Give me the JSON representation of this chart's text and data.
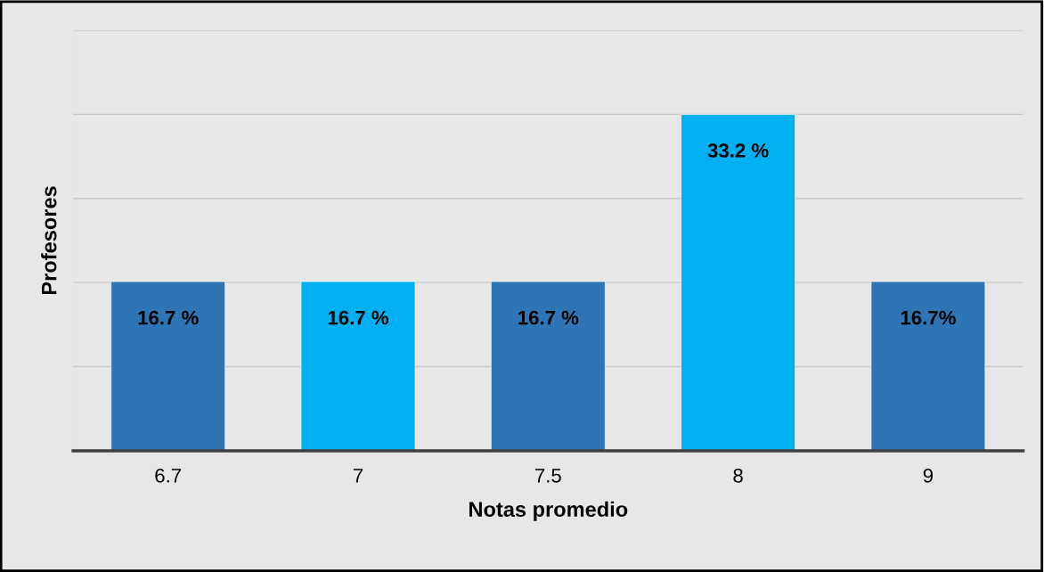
{
  "chart_data": {
    "type": "bar",
    "xlabel": "Notas promedio",
    "ylabel": "Profesores",
    "categories": [
      "6.7",
      "7",
      "7.5",
      "8",
      "9"
    ],
    "values": [
      16.7,
      16.7,
      16.7,
      33.2,
      16.7
    ],
    "colors": [
      "#2e75b6",
      "#00b0f0",
      "#2e75b6",
      "#00b0f0",
      "#2e75b6"
    ],
    "value_labels": [
      "16.7 %",
      "16.7 %",
      "16.7 %",
      "33.2 %",
      "16.7%"
    ],
    "ylim": [
      0,
      41.5
    ],
    "yticks": [
      {
        "value": 0,
        "label": null
      },
      {
        "value": 8.3,
        "label": null
      },
      {
        "value": 16.6,
        "label": null
      },
      {
        "value": 24.9,
        "label": null
      },
      {
        "value": 33.2,
        "label": null
      },
      {
        "value": 41.5,
        "label": null
      }
    ],
    "tick_labels": "x",
    "grid": "y",
    "legend": false
  }
}
